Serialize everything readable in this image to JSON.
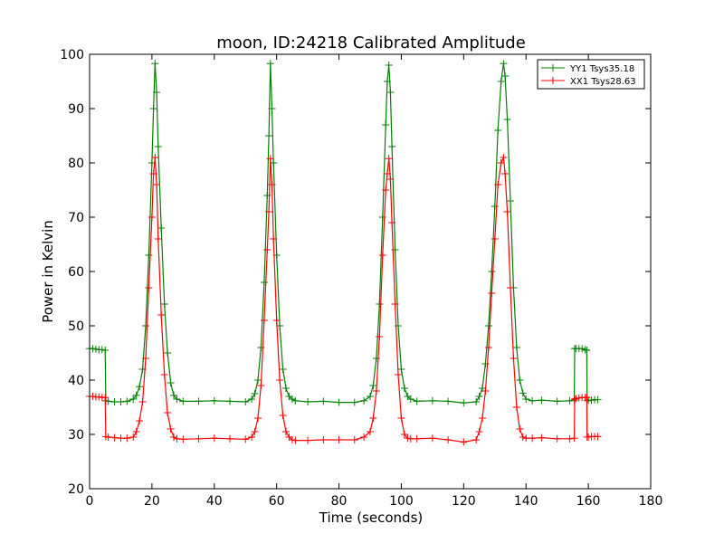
{
  "chart_data": {
    "type": "line",
    "title": "moon, ID:24218 Calibrated Amplitude",
    "xlabel": "Time (seconds)",
    "ylabel": "Power in Kelvin",
    "xlim": [
      0,
      180
    ],
    "ylim": [
      20,
      100
    ],
    "xticks": [
      "0",
      "20",
      "40",
      "60",
      "80",
      "100",
      "120",
      "140",
      "160",
      "180"
    ],
    "yticks": [
      "20",
      "30",
      "40",
      "50",
      "60",
      "70",
      "80",
      "90",
      "100"
    ],
    "grid": false,
    "legend_position": "top-right",
    "marker": "plus",
    "series": [
      {
        "name": "YY1 Tsys35.18",
        "color": "#008000",
        "x": [
          0,
          1,
          2,
          3,
          4,
          5,
          5.2,
          6,
          8,
          10,
          12,
          14,
          15,
          16,
          17,
          18,
          19,
          20,
          20.5,
          21,
          21.5,
          22,
          23,
          24,
          25,
          26,
          27,
          28,
          30,
          35,
          40,
          45,
          50,
          52,
          53,
          54,
          55,
          56,
          57,
          57.5,
          58,
          58.5,
          59,
          60,
          61,
          62,
          63,
          64,
          65,
          66,
          70,
          75,
          80,
          85,
          88,
          90,
          91,
          92,
          93,
          94,
          95,
          95.5,
          96,
          96.5,
          97,
          98,
          99,
          100,
          101,
          102,
          103,
          105,
          110,
          115,
          120,
          124,
          125,
          126,
          127,
          128,
          129,
          130,
          131,
          132,
          132.8,
          133.3,
          134,
          135,
          136,
          137,
          138,
          139,
          140,
          142,
          145,
          150,
          154,
          155.5,
          155.6,
          156,
          157,
          158,
          159,
          159.5,
          159.6,
          160,
          161,
          162,
          163
        ],
        "y": [
          45.8,
          45.8,
          45.7,
          45.6,
          45.6,
          45.5,
          36.2,
          36.1,
          36.0,
          36.0,
          36.1,
          36.5,
          37.2,
          38.8,
          42.0,
          50.0,
          63.0,
          80.0,
          90.0,
          98.3,
          93.0,
          83.0,
          68.0,
          54.0,
          45.0,
          39.5,
          37.2,
          36.5,
          36.1,
          36.1,
          36.2,
          36.1,
          36.0,
          36.5,
          37.5,
          40.0,
          46.0,
          58.0,
          74.0,
          85.0,
          98.3,
          90.0,
          80.0,
          63.0,
          50.0,
          42.0,
          38.5,
          37.0,
          36.5,
          36.2,
          36.0,
          36.1,
          35.9,
          35.9,
          36.2,
          37.0,
          39.0,
          44.0,
          54.0,
          70.0,
          87.0,
          95.0,
          98.0,
          93.0,
          83.0,
          64.0,
          50.0,
          42.0,
          38.5,
          37.0,
          36.5,
          36.1,
          36.2,
          36.1,
          35.8,
          36.0,
          37.0,
          38.5,
          43.0,
          50.0,
          60.0,
          72.0,
          86.0,
          95.0,
          98.3,
          96.0,
          88.0,
          73.0,
          57.0,
          46.0,
          40.0,
          37.6,
          36.5,
          36.2,
          36.3,
          36.1,
          36.2,
          36.3,
          45.8,
          45.8,
          45.8,
          45.8,
          45.6,
          45.5,
          36.2,
          36.3,
          36.3,
          36.4,
          36.4
        ]
      },
      {
        "name": "XX1 Tsys28.63",
        "color": "#ff0000",
        "x": [
          0,
          1,
          2,
          3,
          4,
          5,
          5.2,
          6,
          8,
          10,
          12,
          14,
          15,
          16,
          17,
          18,
          19,
          20,
          20.5,
          21,
          21.5,
          22,
          23,
          24,
          25,
          26,
          27,
          28,
          30,
          35,
          40,
          45,
          50,
          52,
          53,
          54,
          55,
          56,
          57,
          57.5,
          58,
          58.5,
          59,
          60,
          61,
          62,
          63,
          64,
          65,
          66,
          70,
          75,
          80,
          85,
          88,
          90,
          91,
          92,
          93,
          94,
          95,
          95.5,
          96,
          96.5,
          97,
          98,
          99,
          100,
          101,
          102,
          103,
          105,
          110,
          115,
          120,
          124,
          125,
          126,
          127,
          128,
          129,
          130,
          131,
          132,
          132.8,
          133.3,
          134,
          135,
          136,
          137,
          138,
          139,
          140,
          142,
          145,
          150,
          154,
          155.5,
          155.6,
          156,
          157,
          158,
          159,
          159.5,
          159.6,
          160,
          161,
          162,
          163
        ],
        "y": [
          37.0,
          37.0,
          36.9,
          36.9,
          36.8,
          36.8,
          29.6,
          29.5,
          29.4,
          29.3,
          29.3,
          29.5,
          30.5,
          32.5,
          36.0,
          44.0,
          57.0,
          70.0,
          78.0,
          81.0,
          76.0,
          66.0,
          52.0,
          41.0,
          34.0,
          31.0,
          29.5,
          29.2,
          29.1,
          29.2,
          29.3,
          29.2,
          29.1,
          29.5,
          30.5,
          33.0,
          39.0,
          51.0,
          64.0,
          71.0,
          80.8,
          76.0,
          66.0,
          51.0,
          40.0,
          33.5,
          30.5,
          29.5,
          29.0,
          28.9,
          28.9,
          29.0,
          29.0,
          29.0,
          29.5,
          30.5,
          33.0,
          38.0,
          48.0,
          63.0,
          75.0,
          78.0,
          80.8,
          77.0,
          69.0,
          54.0,
          41.0,
          33.0,
          30.0,
          29.3,
          29.2,
          29.2,
          29.3,
          29.0,
          28.6,
          29.0,
          30.5,
          33.0,
          38.0,
          46.0,
          56.0,
          66.0,
          76.0,
          80.0,
          81.0,
          78.0,
          71.0,
          57.0,
          44.0,
          35.0,
          31.0,
          29.5,
          29.3,
          29.3,
          29.4,
          29.2,
          29.2,
          29.3,
          36.5,
          36.6,
          36.7,
          36.8,
          36.8,
          36.8,
          29.5,
          29.5,
          29.6,
          29.6,
          29.6
        ]
      }
    ]
  }
}
